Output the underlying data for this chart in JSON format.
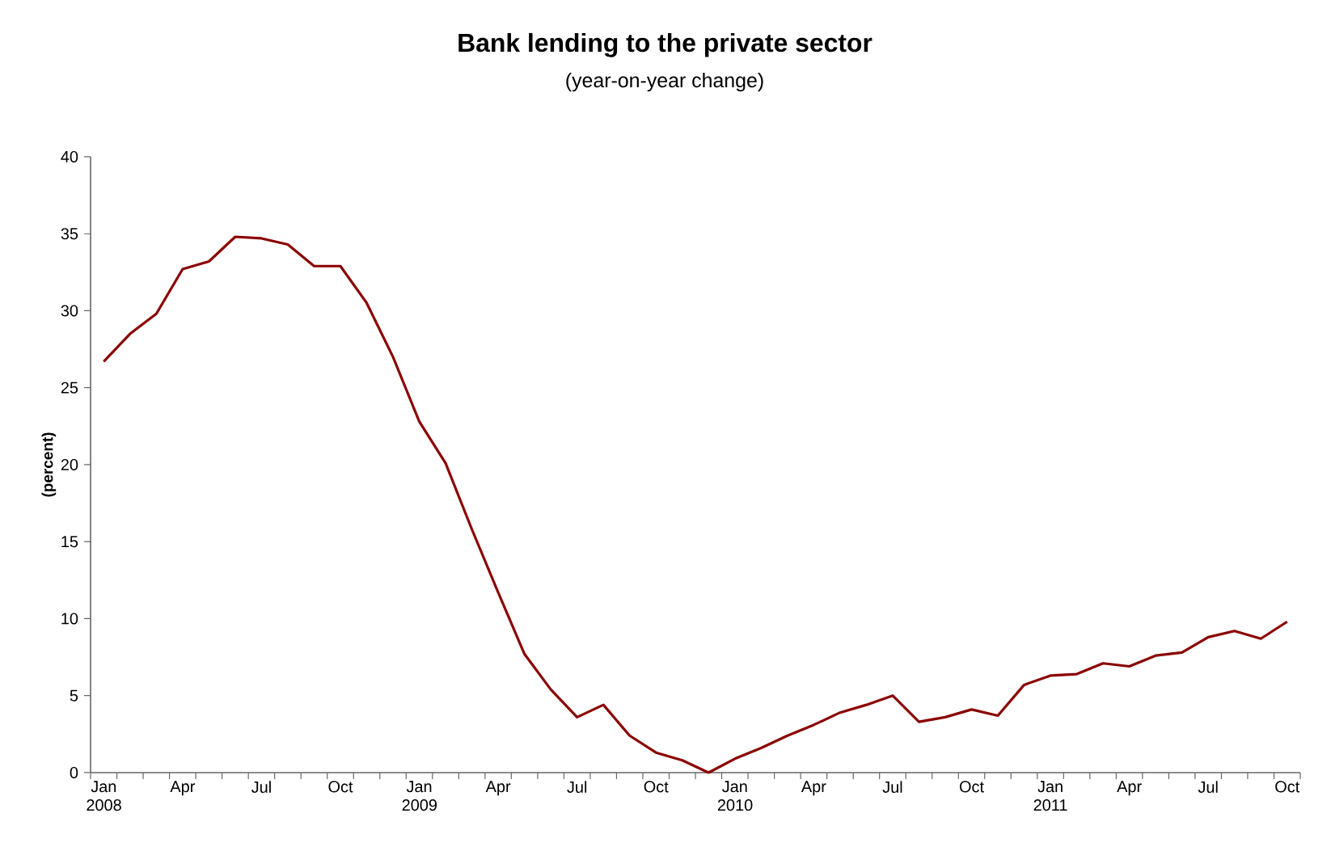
{
  "chart_data": {
    "type": "line",
    "title": "Bank lending to the private sector",
    "subtitle": "(year-on-year change)",
    "ylabel": "(percent)",
    "categories": [
      "Jan 2008",
      null,
      null,
      "Apr",
      null,
      null,
      "Jul",
      null,
      null,
      "Oct",
      null,
      null,
      "Jan 2009",
      null,
      null,
      "Apr",
      null,
      null,
      "Jul",
      null,
      null,
      "Oct",
      null,
      null,
      "Jan 2010",
      null,
      null,
      "Apr",
      null,
      null,
      "Jul",
      null,
      null,
      "Oct",
      null,
      null,
      "Jan 2011",
      null,
      null,
      "Apr",
      null,
      null,
      "Jul",
      null,
      null,
      "Oct"
    ],
    "series": [
      {
        "color": "#8b0000",
        "values": [
          26.7,
          28.5,
          29.8,
          32.7,
          33.2,
          34.8,
          34.7,
          34.3,
          32.9,
          32.9,
          30.5,
          27.0,
          22.8,
          20.1,
          15.8,
          11.7,
          7.7,
          5.4,
          3.6,
          4.4,
          2.4,
          1.3,
          0.8,
          0.0,
          0.9,
          1.6,
          2.4,
          3.1,
          3.9,
          4.4,
          5.0,
          3.3,
          3.6,
          4.1,
          3.7,
          5.7,
          6.3,
          6.4,
          7.1,
          6.9,
          7.6,
          7.8,
          8.8,
          9.2,
          8.7,
          9.8
        ]
      }
    ],
    "ylim": [
      0,
      40
    ],
    "yticks": [
      0,
      5,
      10,
      15,
      20,
      25,
      30,
      35,
      40
    ],
    "grid": false,
    "legend": false,
    "marker": "none",
    "line_style": "solid"
  }
}
